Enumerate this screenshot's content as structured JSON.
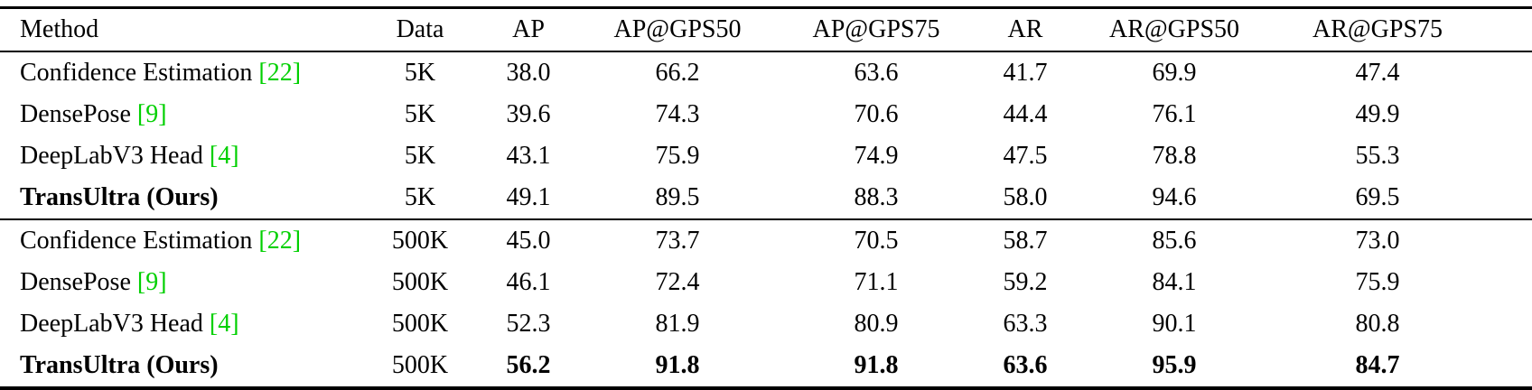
{
  "table": {
    "columns": [
      "Method",
      "Data",
      "AP",
      "AP@GPS50",
      "AP@GPS75",
      "AR",
      "AR@GPS50",
      "AR@GPS75"
    ],
    "groups": [
      {
        "rows": [
          {
            "method": "Confidence Estimation",
            "citation": "[22]",
            "method_bold": false,
            "data": "5K",
            "values": [
              "38.0",
              "66.2",
              "63.6",
              "41.7",
              "69.9",
              "47.4"
            ],
            "values_bold": false
          },
          {
            "method": "DensePose",
            "citation": "[9]",
            "method_bold": false,
            "data": "5K",
            "values": [
              "39.6",
              "74.3",
              "70.6",
              "44.4",
              "76.1",
              "49.9"
            ],
            "values_bold": false
          },
          {
            "method": "DeepLabV3 Head",
            "citation": "[4]",
            "method_bold": false,
            "data": "5K",
            "values": [
              "43.1",
              "75.9",
              "74.9",
              "47.5",
              "78.8",
              "55.3"
            ],
            "values_bold": false
          },
          {
            "method": "TransUltra (Ours)",
            "citation": "",
            "method_bold": true,
            "data": "5K",
            "values": [
              "49.1",
              "89.5",
              "88.3",
              "58.0",
              "94.6",
              "69.5"
            ],
            "values_bold": false
          }
        ]
      },
      {
        "rows": [
          {
            "method": "Confidence Estimation",
            "citation": "[22]",
            "method_bold": false,
            "data": "500K",
            "values": [
              "45.0",
              "73.7",
              "70.5",
              "58.7",
              "85.6",
              "73.0"
            ],
            "values_bold": false
          },
          {
            "method": "DensePose",
            "citation": "[9]",
            "method_bold": false,
            "data": "500K",
            "values": [
              "46.1",
              "72.4",
              "71.1",
              "59.2",
              "84.1",
              "75.9"
            ],
            "values_bold": false
          },
          {
            "method": "DeepLabV3 Head",
            "citation": "[4]",
            "method_bold": false,
            "data": "500K",
            "values": [
              "52.3",
              "81.9",
              "80.9",
              "63.3",
              "90.1",
              "80.8"
            ],
            "values_bold": false
          },
          {
            "method": "TransUltra (Ours)",
            "citation": "",
            "method_bold": true,
            "data": "500K",
            "values": [
              "56.2",
              "91.8",
              "91.8",
              "63.6",
              "95.9",
              "84.7"
            ],
            "values_bold": true
          }
        ]
      }
    ]
  },
  "colors": {
    "citation_green": "#00d000"
  }
}
